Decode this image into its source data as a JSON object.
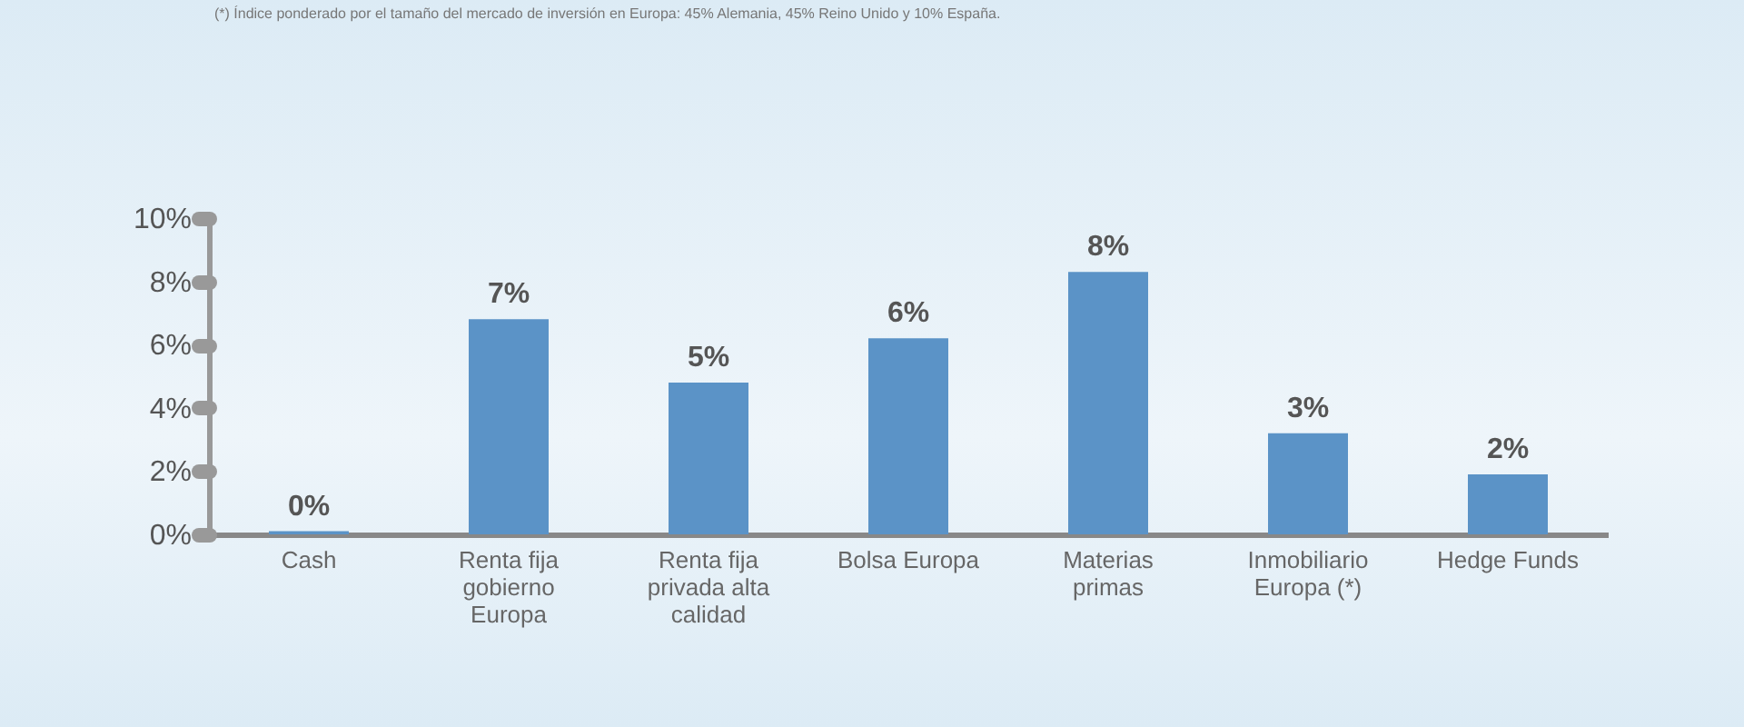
{
  "chart_data": {
    "type": "bar",
    "categories": [
      "Cash",
      "Renta fija gobierno Europa",
      "Renta fija privada alta calidad",
      "Bolsa Europa",
      "Materias primas",
      "Inmobiliario Europa (*)",
      "Hedge Funds"
    ],
    "values": [
      0.1,
      6.8,
      4.8,
      6.2,
      8.3,
      3.2,
      1.9
    ],
    "value_labels": [
      "0%",
      "7%",
      "5%",
      "6%",
      "8%",
      "3%",
      "2%"
    ],
    "color": "#5b93c7",
    "ylim": [
      0,
      10
    ],
    "yticks": [
      {
        "value": 0,
        "label": "0%"
      },
      {
        "value": 2,
        "label": "2%"
      },
      {
        "value": 4,
        "label": "4%"
      },
      {
        "value": 6,
        "label": "6%"
      },
      {
        "value": 8,
        "label": "8%"
      },
      {
        "value": 10,
        "label": "10%"
      }
    ],
    "grid": false,
    "annotations": [
      "(*) Índice ponderado por el tamaño del mercado de inversión en Europa: 45% Alemania, 45% Reino Unido y 10% España."
    ]
  }
}
